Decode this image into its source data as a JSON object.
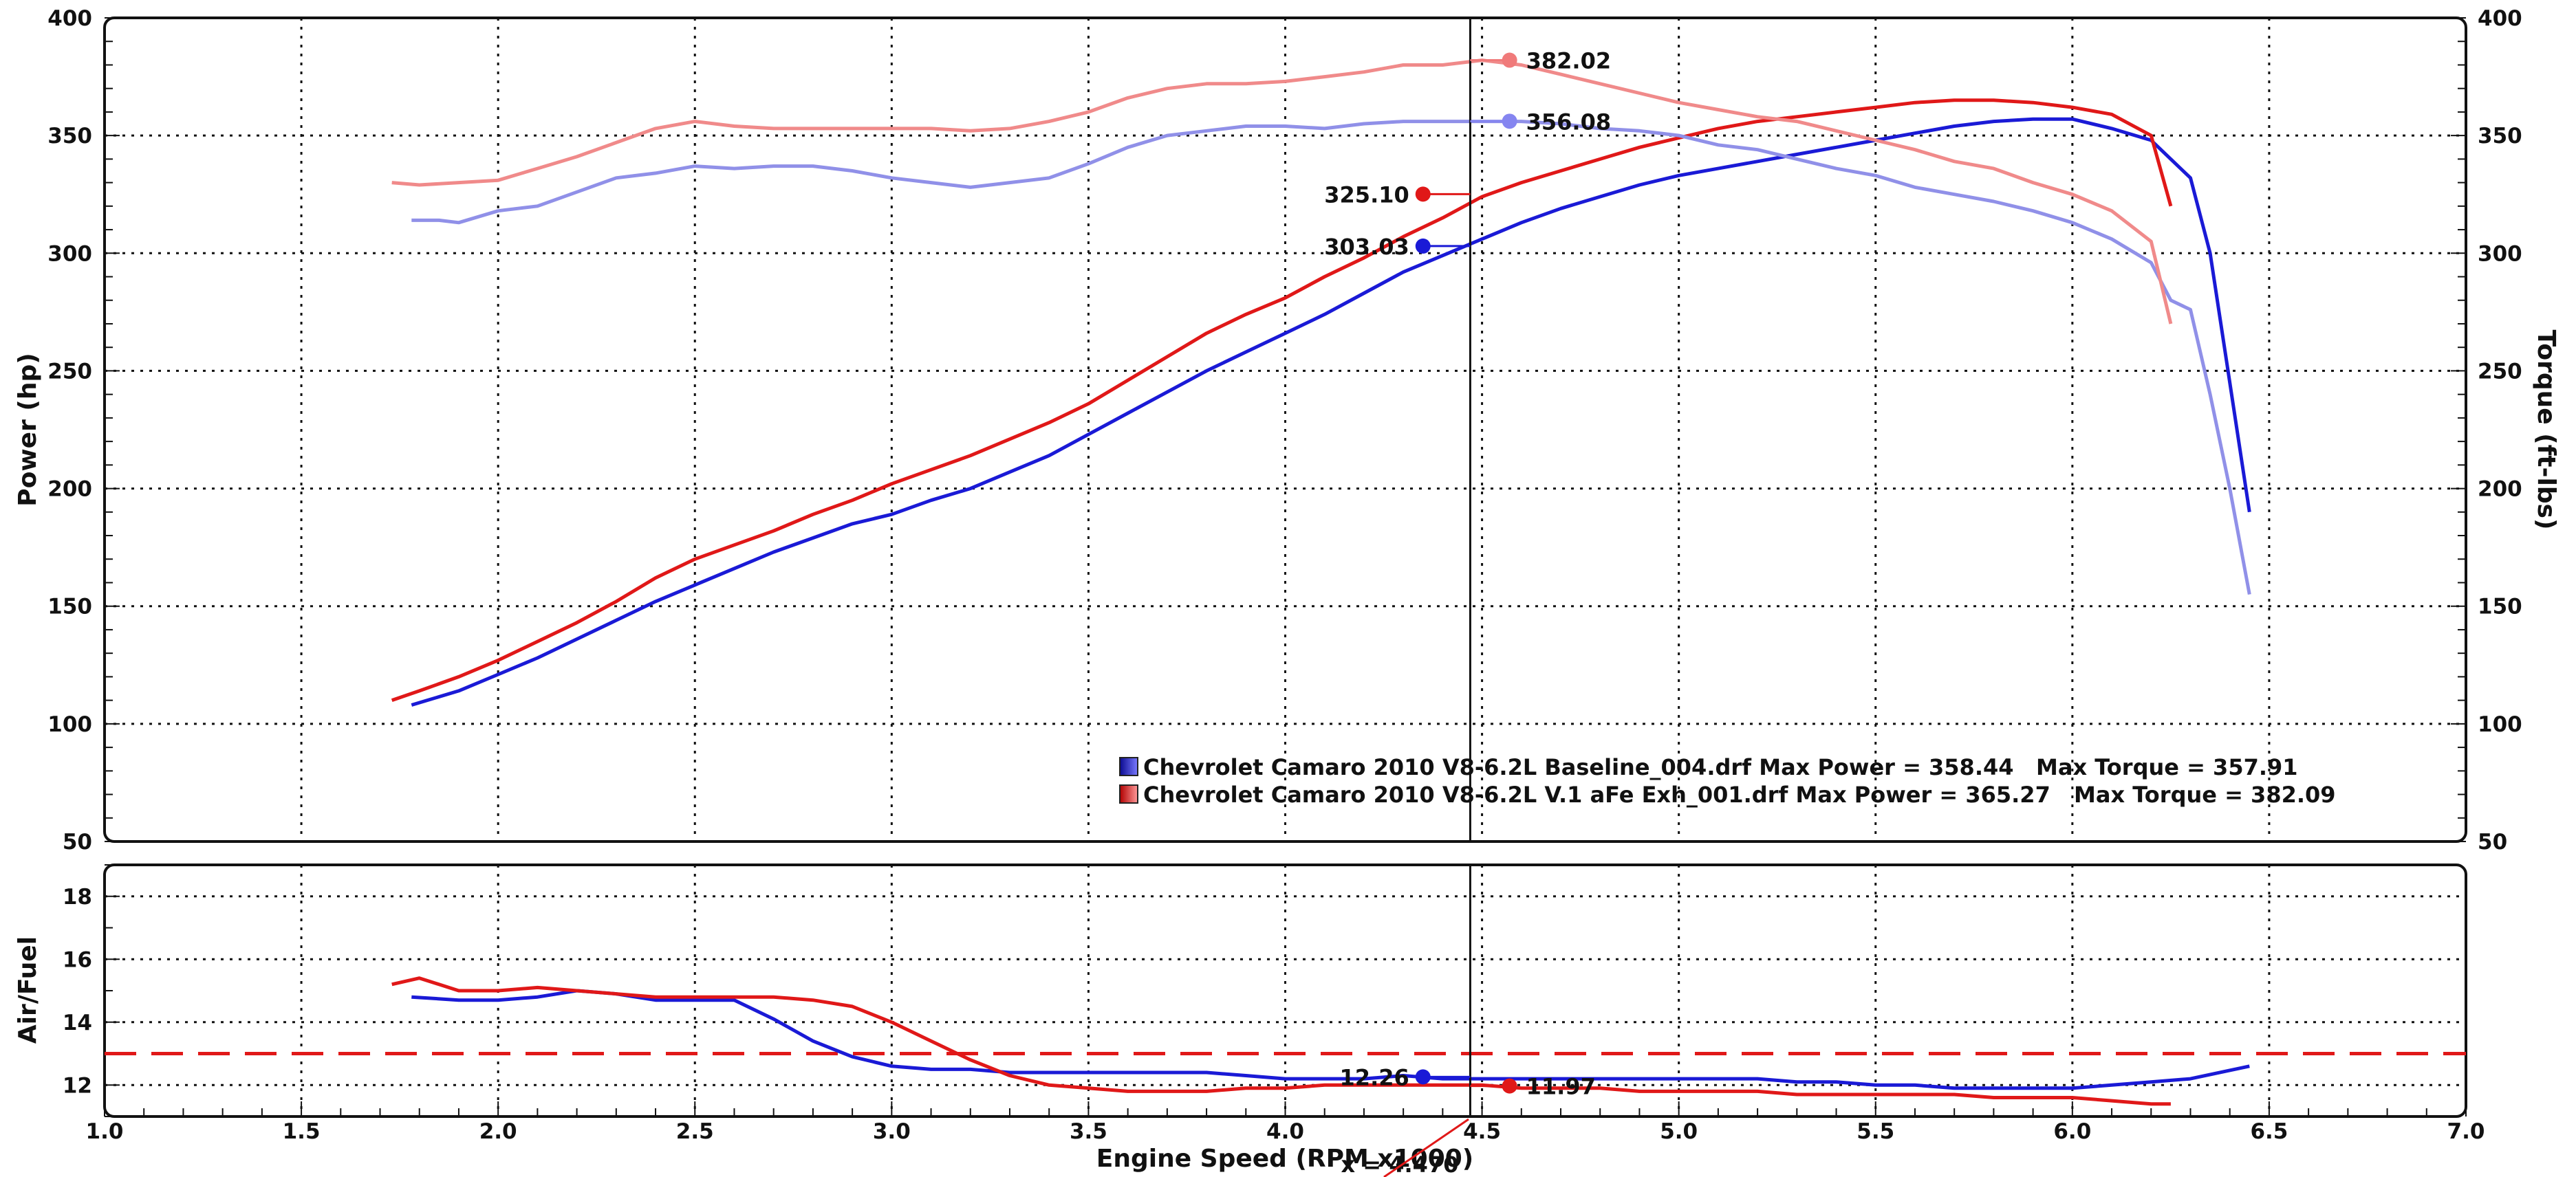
{
  "chart_data": [
    {
      "type": "line",
      "panel": "power-torque",
      "xlabel": "Engine Speed (RPM x1000)",
      "ylabel": "Power (hp)",
      "y2label": "Torque (ft-lbs)",
      "xlim": [
        1.0,
        7.0
      ],
      "ylim": [
        50,
        400
      ],
      "y2lim": [
        50,
        400
      ],
      "x_ticks": [
        "1.0",
        "1.5",
        "2.0",
        "2.5",
        "3.0",
        "3.5",
        "4.0",
        "4.5",
        "5.0",
        "5.5",
        "6.0",
        "6.5",
        "7.0"
      ],
      "y_ticks": [
        "50",
        "100",
        "150",
        "200",
        "250",
        "300",
        "350",
        "400"
      ],
      "y2_ticks": [
        "50",
        "100",
        "150",
        "200",
        "250",
        "300",
        "350",
        "400"
      ],
      "grid": true,
      "legend": {
        "placement": "bottom-center",
        "entries": [
          {
            "text": "Chevrolet Camaro 2010 V8-6.2L Baseline_004.drf Max Power = 358.44",
            "extra": "Max Torque = 357.91",
            "color": "#1a1ad6"
          },
          {
            "text": "Chevrolet Camaro 2010 V8-6.2L V.1 aFe Exh_001.drf Max Power = 365.27",
            "extra": "Max Torque = 382.09",
            "color": "#e01818"
          }
        ]
      },
      "series": [
        {
          "key": "baseline_power",
          "axis": "left",
          "color": "#1a1ad6",
          "x": [
            1.78,
            1.9,
            2.0,
            2.1,
            2.2,
            2.3,
            2.4,
            2.5,
            2.6,
            2.7,
            2.8,
            2.9,
            3.0,
            3.1,
            3.2,
            3.3,
            3.4,
            3.5,
            3.6,
            3.7,
            3.8,
            3.9,
            4.0,
            4.1,
            4.2,
            4.3,
            4.4,
            4.5,
            4.6,
            4.7,
            4.8,
            4.9,
            5.0,
            5.1,
            5.2,
            5.3,
            5.4,
            5.5,
            5.6,
            5.7,
            5.8,
            5.9,
            6.0,
            6.1,
            6.2,
            6.25,
            6.3,
            6.35,
            6.4,
            6.45
          ],
          "y": [
            108,
            114,
            121,
            128,
            136,
            144,
            152,
            159,
            166,
            173,
            179,
            185,
            189,
            195,
            200,
            207,
            214,
            223,
            232,
            241,
            250,
            258,
            266,
            274,
            283,
            292,
            299,
            306,
            313,
            319,
            324,
            329,
            333,
            336,
            339,
            342,
            345,
            348,
            351,
            354,
            356,
            357,
            357,
            353,
            348,
            340,
            332,
            300,
            245,
            190
          ]
        },
        {
          "key": "mod_power",
          "axis": "left",
          "color": "#e01818",
          "x": [
            1.73,
            1.8,
            1.9,
            2.0,
            2.1,
            2.2,
            2.3,
            2.4,
            2.5,
            2.6,
            2.7,
            2.8,
            2.9,
            3.0,
            3.1,
            3.2,
            3.3,
            3.4,
            3.5,
            3.6,
            3.7,
            3.8,
            3.9,
            4.0,
            4.1,
            4.2,
            4.3,
            4.4,
            4.5,
            4.6,
            4.7,
            4.8,
            4.9,
            5.0,
            5.1,
            5.2,
            5.3,
            5.4,
            5.5,
            5.6,
            5.7,
            5.8,
            5.9,
            6.0,
            6.1,
            6.2,
            6.25
          ],
          "y": [
            110,
            114,
            120,
            127,
            135,
            143,
            152,
            162,
            170,
            176,
            182,
            189,
            195,
            202,
            208,
            214,
            221,
            228,
            236,
            246,
            256,
            266,
            274,
            281,
            290,
            298,
            307,
            315,
            324,
            330,
            335,
            340,
            345,
            349,
            353,
            356,
            358,
            360,
            362,
            364,
            365,
            365,
            364,
            362,
            359,
            350,
            320
          ]
        },
        {
          "key": "baseline_torque",
          "axis": "right",
          "color": "#9090e8",
          "x": [
            1.78,
            1.85,
            1.9,
            2.0,
            2.1,
            2.2,
            2.3,
            2.4,
            2.5,
            2.6,
            2.7,
            2.8,
            2.9,
            3.0,
            3.1,
            3.2,
            3.3,
            3.4,
            3.5,
            3.6,
            3.7,
            3.8,
            3.9,
            4.0,
            4.1,
            4.2,
            4.3,
            4.4,
            4.5,
            4.6,
            4.7,
            4.8,
            4.9,
            5.0,
            5.1,
            5.2,
            5.3,
            5.4,
            5.5,
            5.6,
            5.7,
            5.8,
            5.9,
            6.0,
            6.1,
            6.2,
            6.25,
            6.3,
            6.35,
            6.4,
            6.45
          ],
          "y": [
            314,
            314,
            313,
            318,
            320,
            326,
            332,
            334,
            337,
            336,
            337,
            337,
            335,
            332,
            330,
            328,
            330,
            332,
            338,
            345,
            350,
            352,
            354,
            354,
            353,
            355,
            356,
            356,
            356,
            356,
            355,
            353,
            352,
            350,
            346,
            344,
            340,
            336,
            333,
            328,
            325,
            322,
            318,
            313,
            306,
            296,
            280,
            276,
            240,
            200,
            155
          ]
        },
        {
          "key": "mod_torque",
          "axis": "right",
          "color": "#f08a8a",
          "x": [
            1.73,
            1.8,
            1.9,
            2.0,
            2.1,
            2.2,
            2.3,
            2.4,
            2.5,
            2.6,
            2.7,
            2.8,
            2.9,
            3.0,
            3.1,
            3.2,
            3.3,
            3.4,
            3.5,
            3.6,
            3.7,
            3.8,
            3.9,
            4.0,
            4.1,
            4.2,
            4.3,
            4.4,
            4.5,
            4.6,
            4.7,
            4.8,
            4.9,
            5.0,
            5.1,
            5.2,
            5.3,
            5.4,
            5.5,
            5.6,
            5.7,
            5.8,
            5.9,
            6.0,
            6.1,
            6.2,
            6.25
          ],
          "y": [
            330,
            329,
            330,
            331,
            336,
            341,
            347,
            353,
            356,
            354,
            353,
            353,
            353,
            353,
            353,
            352,
            353,
            356,
            360,
            366,
            370,
            372,
            372,
            373,
            375,
            377,
            380,
            380,
            382,
            380,
            376,
            372,
            368,
            364,
            361,
            358,
            356,
            352,
            348,
            344,
            339,
            336,
            330,
            325,
            318,
            305,
            270
          ]
        }
      ],
      "markers": [
        {
          "x": 4.35,
          "y": 303.03,
          "label": "303.03",
          "color": "#1a1ad6",
          "axis": "left"
        },
        {
          "x": 4.35,
          "y": 325.1,
          "label": "325.10",
          "color": "#e01818",
          "axis": "left"
        },
        {
          "x": 4.57,
          "y": 356.08,
          "label": "356.08",
          "color": "#8585f0",
          "axis": "right"
        },
        {
          "x": 4.57,
          "y": 382.02,
          "label": "382.02",
          "color": "#f07a7a",
          "axis": "right"
        }
      ],
      "cursor_x": 4.47
    },
    {
      "type": "line",
      "panel": "air-fuel",
      "xlabel": "Engine Speed (RPM x1000)",
      "ylabel": "Air/Fuel",
      "xlim": [
        1.0,
        7.0
      ],
      "ylim": [
        11,
        19
      ],
      "y_ticks": [
        "12",
        "14",
        "16",
        "18"
      ],
      "grid": true,
      "reference_line": {
        "y": 13.0,
        "color": "#e01818",
        "style": "dashed"
      },
      "series": [
        {
          "key": "baseline_af",
          "color": "#1a1ad6",
          "x": [
            1.78,
            1.9,
            2.0,
            2.1,
            2.2,
            2.3,
            2.4,
            2.5,
            2.6,
            2.7,
            2.8,
            2.9,
            3.0,
            3.1,
            3.2,
            3.3,
            3.4,
            3.5,
            3.6,
            3.7,
            3.8,
            3.9,
            4.0,
            4.1,
            4.2,
            4.3,
            4.4,
            4.5,
            4.6,
            4.7,
            4.8,
            4.9,
            5.0,
            5.1,
            5.2,
            5.3,
            5.4,
            5.5,
            5.6,
            5.7,
            5.8,
            5.9,
            6.0,
            6.1,
            6.2,
            6.3,
            6.45
          ],
          "y": [
            14.8,
            14.7,
            14.7,
            14.8,
            15.0,
            14.9,
            14.7,
            14.7,
            14.7,
            14.1,
            13.4,
            12.9,
            12.6,
            12.5,
            12.5,
            12.4,
            12.4,
            12.4,
            12.4,
            12.4,
            12.4,
            12.3,
            12.2,
            12.2,
            12.2,
            12.3,
            12.2,
            12.2,
            12.2,
            12.2,
            12.2,
            12.2,
            12.2,
            12.2,
            12.2,
            12.1,
            12.1,
            12.0,
            12.0,
            11.9,
            11.9,
            11.9,
            11.9,
            12.0,
            12.1,
            12.2,
            12.6
          ]
        },
        {
          "key": "mod_af",
          "color": "#e01818",
          "x": [
            1.73,
            1.8,
            1.9,
            2.0,
            2.1,
            2.2,
            2.3,
            2.4,
            2.5,
            2.6,
            2.7,
            2.8,
            2.9,
            3.0,
            3.1,
            3.2,
            3.3,
            3.4,
            3.5,
            3.6,
            3.7,
            3.8,
            3.9,
            4.0,
            4.1,
            4.2,
            4.3,
            4.4,
            4.5,
            4.6,
            4.7,
            4.8,
            4.9,
            5.0,
            5.1,
            5.2,
            5.3,
            5.4,
            5.5,
            5.6,
            5.7,
            5.8,
            5.9,
            6.0,
            6.1,
            6.2,
            6.25
          ],
          "y": [
            15.2,
            15.4,
            15.0,
            15.0,
            15.1,
            15.0,
            14.9,
            14.8,
            14.8,
            14.8,
            14.8,
            14.7,
            14.5,
            14.0,
            13.4,
            12.8,
            12.3,
            12.0,
            11.9,
            11.8,
            11.8,
            11.8,
            11.9,
            11.9,
            12.0,
            12.0,
            12.0,
            12.0,
            12.0,
            11.9,
            11.9,
            11.9,
            11.8,
            11.8,
            11.8,
            11.8,
            11.7,
            11.7,
            11.7,
            11.7,
            11.7,
            11.6,
            11.6,
            11.6,
            11.5,
            11.4,
            11.4
          ]
        }
      ],
      "markers": [
        {
          "x": 4.35,
          "y": 12.26,
          "label": "12.26",
          "color": "#1a1ad6"
        },
        {
          "x": 4.57,
          "y": 11.97,
          "label": "11.97",
          "color": "#e01818"
        }
      ],
      "cursor_x": 4.47,
      "cursor_readout": "x = 4.470"
    }
  ]
}
